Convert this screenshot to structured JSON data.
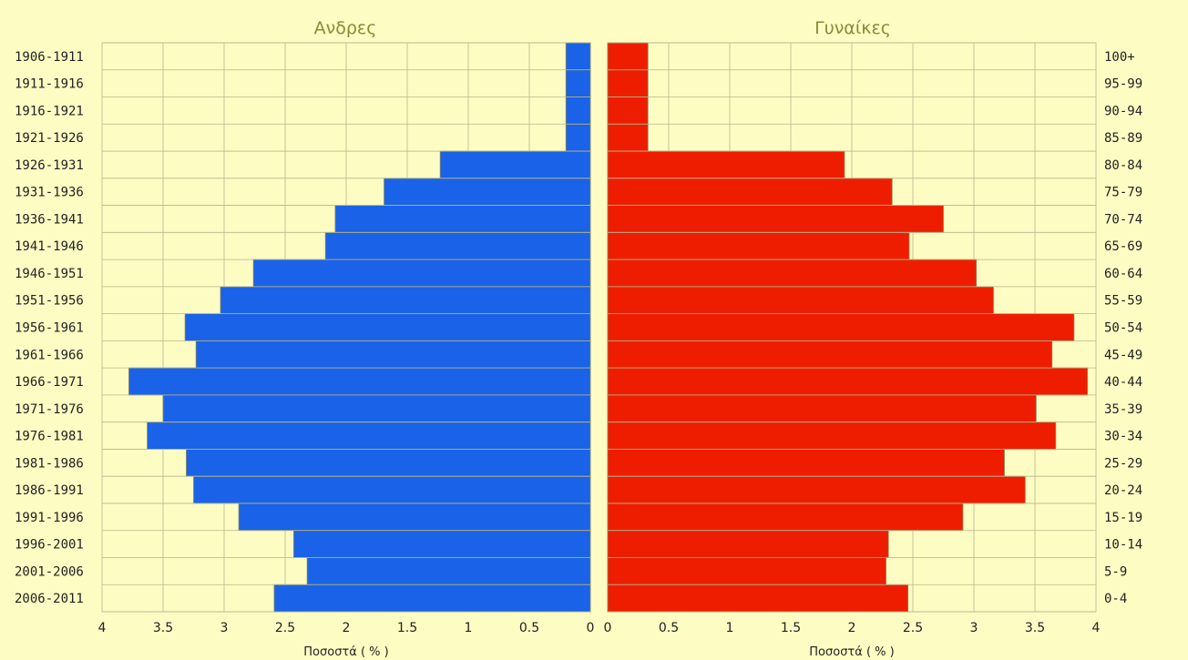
{
  "chart_data": {
    "type": "bar",
    "orientation": "horizontal",
    "subtype": "population-pyramid",
    "panels": [
      {
        "title": "Ανδρες",
        "side": "left",
        "color": "#1a62e8",
        "xlabel": "Ποσοστά ( % )",
        "xlim": [
          0,
          4
        ],
        "xticks": [
          "4",
          "3.5",
          "3",
          "2.5",
          "2",
          "1.5",
          "1",
          "0.5",
          "0"
        ],
        "categories": [
          "1906-1911",
          "1911-1916",
          "1916-1921",
          "1921-1926",
          "1926-1931",
          "1931-1936",
          "1936-1941",
          "1941-1946",
          "1946-1951",
          "1951-1956",
          "1956-1961",
          "1961-1966",
          "1966-1971",
          "1971-1976",
          "1976-1981",
          "1981-1986",
          "1986-1991",
          "1991-1996",
          "1996-2001",
          "2001-2006",
          "2006-2011"
        ],
        "values": [
          0.2,
          0.2,
          0.2,
          0.2,
          1.23,
          1.69,
          2.09,
          2.17,
          2.76,
          3.03,
          3.32,
          3.23,
          3.78,
          3.5,
          3.63,
          3.31,
          3.25,
          2.88,
          2.43,
          2.32,
          2.59
        ]
      },
      {
        "title": "Γυναίκες",
        "side": "right",
        "color": "#ef1d00",
        "xlabel": "Ποσοστά ( % )",
        "xlim": [
          0,
          4
        ],
        "xticks": [
          "0",
          "0.5",
          "1",
          "1.5",
          "2",
          "2.5",
          "3",
          "3.5",
          "4"
        ],
        "categories": [
          "100+",
          "95-99",
          "90-94",
          "85-89",
          "80-84",
          "75-79",
          "70-74",
          "65-69",
          "60-64",
          "55-59",
          "50-54",
          "45-49",
          "40-44",
          "35-39",
          "30-34",
          "25-29",
          "20-24",
          "15-19",
          "10-14",
          "5-9",
          "0-4"
        ],
        "values": [
          0.33,
          0.33,
          0.33,
          0.33,
          1.94,
          2.33,
          2.75,
          2.47,
          3.02,
          3.16,
          3.82,
          3.64,
          3.93,
          3.51,
          3.67,
          3.25,
          3.42,
          2.91,
          2.3,
          2.28,
          2.46
        ]
      }
    ],
    "grid": true
  }
}
